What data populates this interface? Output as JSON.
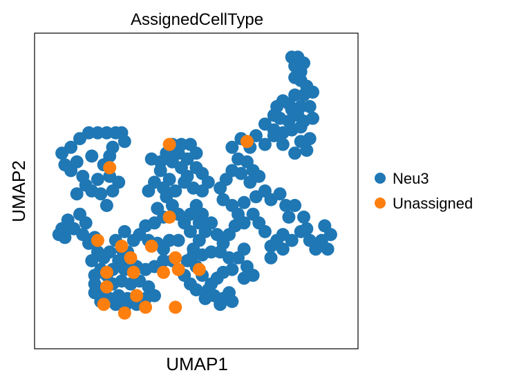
{
  "chart_data": {
    "type": "scatter",
    "title": "AssignedCellType",
    "xlabel": "UMAP1",
    "ylabel": "UMAP2",
    "xlim": [
      0,
      10
    ],
    "ylim": [
      0,
      10
    ],
    "grid": false,
    "legend_position": "right",
    "series": [
      {
        "name": "Neu3",
        "color": "#1f77b4",
        "points": [
          [
            8.2,
            9.6
          ],
          [
            8.4,
            9.6
          ],
          [
            8.6,
            9.4
          ],
          [
            8.3,
            9.3
          ],
          [
            8.5,
            9.1
          ],
          [
            8.3,
            8.9
          ],
          [
            8.5,
            8.8
          ],
          [
            8.7,
            8.6
          ],
          [
            8.9,
            8.4
          ],
          [
            8.6,
            8.3
          ],
          [
            8.3,
            8.3
          ],
          [
            8.1,
            8.0
          ],
          [
            7.9,
            8.1
          ],
          [
            7.7,
            7.9
          ],
          [
            8.2,
            7.8
          ],
          [
            8.5,
            7.9
          ],
          [
            8.8,
            7.9
          ],
          [
            8.9,
            7.5
          ],
          [
            8.6,
            7.4
          ],
          [
            8.4,
            7.6
          ],
          [
            8.1,
            7.4
          ],
          [
            7.8,
            7.5
          ],
          [
            7.6,
            7.6
          ],
          [
            7.3,
            7.3
          ],
          [
            7.6,
            7.1
          ],
          [
            7.9,
            7.0
          ],
          [
            8.2,
            7.1
          ],
          [
            8.5,
            7.2
          ],
          [
            8.8,
            6.8
          ],
          [
            8.5,
            6.7
          ],
          [
            8.7,
            6.4
          ],
          [
            8.3,
            6.3
          ],
          [
            7.9,
            6.6
          ],
          [
            7.6,
            6.9
          ],
          [
            7.3,
            6.6
          ],
          [
            7.0,
            6.9
          ],
          [
            6.8,
            6.5
          ],
          [
            6.5,
            6.8
          ],
          [
            6.2,
            6.5
          ],
          [
            6.4,
            6.1
          ],
          [
            6.7,
            6.0
          ],
          [
            6.9,
            5.7
          ],
          [
            7.1,
            5.5
          ],
          [
            6.8,
            5.3
          ],
          [
            6.5,
            5.6
          ],
          [
            6.2,
            5.7
          ],
          [
            6.0,
            5.4
          ],
          [
            5.8,
            5.1
          ],
          [
            5.9,
            4.7
          ],
          [
            6.2,
            4.5
          ],
          [
            6.4,
            4.2
          ],
          [
            6.6,
            4.6
          ],
          [
            7.0,
            4.8
          ],
          [
            7.3,
            5.0
          ],
          [
            7.5,
            4.7
          ],
          [
            7.8,
            4.9
          ],
          [
            8.0,
            4.5
          ],
          [
            8.3,
            4.5
          ],
          [
            8.1,
            4.1
          ],
          [
            8.6,
            4.1
          ],
          [
            8.7,
            3.7
          ],
          [
            9.3,
            3.8
          ],
          [
            9.5,
            3.5
          ],
          [
            9.2,
            3.3
          ],
          [
            9.4,
            3.0
          ],
          [
            9.0,
            3.0
          ],
          [
            8.8,
            3.3
          ],
          [
            8.5,
            3.6
          ],
          [
            8.2,
            3.3
          ],
          [
            7.9,
            3.5
          ],
          [
            7.7,
            3.3
          ],
          [
            7.5,
            3.1
          ],
          [
            7.9,
            3.0
          ],
          [
            7.5,
            2.7
          ],
          [
            7.3,
            3.6
          ],
          [
            7.1,
            3.9
          ],
          [
            6.9,
            4.2
          ],
          [
            6.6,
            3.9
          ],
          [
            6.3,
            3.8
          ],
          [
            6.1,
            3.5
          ],
          [
            5.9,
            3.2
          ],
          [
            5.7,
            3.5
          ],
          [
            5.5,
            3.9
          ],
          [
            5.3,
            3.6
          ],
          [
            5.1,
            3.3
          ],
          [
            4.9,
            3.0
          ],
          [
            5.2,
            2.8
          ],
          [
            5.5,
            2.9
          ],
          [
            5.8,
            2.9
          ],
          [
            6.1,
            2.7
          ],
          [
            6.4,
            2.7
          ],
          [
            6.6,
            3.0
          ],
          [
            6.7,
            2.4
          ],
          [
            6.9,
            2.1
          ],
          [
            6.6,
            2.0
          ],
          [
            6.2,
            2.3
          ],
          [
            5.9,
            2.2
          ],
          [
            5.7,
            2.0
          ],
          [
            5.5,
            1.8
          ],
          [
            5.6,
            1.4
          ],
          [
            5.9,
            1.3
          ],
          [
            6.1,
            1.5
          ],
          [
            6.2,
            1.2
          ],
          [
            5.8,
            1.1
          ],
          [
            5.4,
            1.6
          ],
          [
            5.2,
            2.1
          ],
          [
            5.0,
            2.4
          ],
          [
            4.9,
            2.8
          ],
          [
            5.3,
            1.3
          ],
          [
            5.0,
            1.6
          ],
          [
            4.8,
            1.8
          ],
          [
            4.6,
            2.1
          ],
          [
            4.8,
            4.2
          ],
          [
            5.0,
            4.5
          ],
          [
            5.2,
            4.2
          ],
          [
            5.1,
            3.9
          ],
          [
            4.8,
            3.6
          ],
          [
            4.6,
            3.9
          ],
          [
            4.4,
            4.2
          ],
          [
            4.2,
            4.5
          ],
          [
            4.0,
            4.8
          ],
          [
            4.3,
            5.0
          ],
          [
            4.6,
            5.3
          ],
          [
            4.9,
            5.1
          ],
          [
            5.2,
            5.0
          ],
          [
            5.4,
            5.3
          ],
          [
            5.2,
            5.6
          ],
          [
            5.0,
            5.8
          ],
          [
            4.7,
            5.5
          ],
          [
            4.5,
            5.8
          ],
          [
            4.2,
            6.0
          ],
          [
            4.4,
            6.3
          ],
          [
            4.7,
            6.1
          ],
          [
            5.0,
            6.3
          ],
          [
            4.8,
            6.6
          ],
          [
            4.5,
            6.6
          ],
          [
            4.2,
            6.6
          ],
          [
            4.0,
            6.3
          ],
          [
            3.8,
            6.0
          ],
          [
            3.5,
            6.1
          ],
          [
            3.8,
            5.7
          ],
          [
            4.1,
            5.4
          ],
          [
            3.9,
            5.1
          ],
          [
            3.6,
            5.3
          ],
          [
            3.4,
            5.0
          ],
          [
            3.7,
            4.4
          ],
          [
            3.9,
            4.1
          ],
          [
            3.6,
            3.9
          ],
          [
            3.3,
            3.8
          ],
          [
            3.1,
            3.5
          ],
          [
            3.4,
            3.3
          ],
          [
            3.7,
            3.2
          ],
          [
            3.9,
            3.0
          ],
          [
            4.1,
            3.3
          ],
          [
            4.4,
            3.3
          ],
          [
            4.7,
            2.6
          ],
          [
            4.2,
            2.6
          ],
          [
            3.9,
            2.6
          ],
          [
            3.6,
            2.4
          ],
          [
            3.3,
            2.3
          ],
          [
            3.0,
            2.4
          ],
          [
            2.8,
            2.6
          ],
          [
            2.6,
            2.3
          ],
          [
            2.4,
            2.6
          ],
          [
            2.2,
            2.3
          ],
          [
            2.0,
            2.1
          ],
          [
            1.8,
            2.3
          ],
          [
            1.6,
            2.1
          ],
          [
            1.6,
            1.8
          ],
          [
            1.9,
            1.6
          ],
          [
            2.2,
            1.8
          ],
          [
            2.5,
            1.9
          ],
          [
            2.8,
            1.8
          ],
          [
            3.1,
            1.9
          ],
          [
            3.4,
            1.7
          ],
          [
            3.6,
            1.4
          ],
          [
            3.3,
            1.3
          ],
          [
            3.0,
            1.4
          ],
          [
            2.7,
            1.3
          ],
          [
            2.4,
            1.4
          ],
          [
            2.1,
            1.3
          ],
          [
            1.8,
            1.2
          ],
          [
            1.6,
            1.5
          ],
          [
            2.3,
            1.1
          ],
          [
            2.6,
            1.0
          ],
          [
            3.0,
            1.1
          ],
          [
            2.5,
            3.0
          ],
          [
            2.3,
            3.3
          ],
          [
            2.6,
            3.6
          ],
          [
            2.9,
            3.3
          ],
          [
            2.7,
            2.9
          ],
          [
            2.1,
            2.9
          ],
          [
            1.9,
            2.7
          ],
          [
            1.7,
            2.9
          ],
          [
            1.5,
            2.6
          ],
          [
            1.4,
            3.2
          ],
          [
            1.6,
            3.4
          ],
          [
            1.3,
            3.9
          ],
          [
            1.1,
            4.2
          ],
          [
            1.0,
            4.9
          ],
          [
            1.3,
            5.2
          ],
          [
            1.5,
            5.0
          ],
          [
            1.2,
            5.5
          ],
          [
            1.0,
            6.0
          ],
          [
            0.8,
            5.7
          ],
          [
            0.6,
            5.9
          ],
          [
            0.5,
            6.3
          ],
          [
            0.8,
            6.5
          ],
          [
            1.1,
            6.8
          ],
          [
            1.4,
            7.0
          ],
          [
            1.7,
            7.0
          ],
          [
            2.0,
            7.0
          ],
          [
            2.3,
            7.0
          ],
          [
            2.5,
            7.0
          ],
          [
            2.6,
            6.7
          ],
          [
            2.2,
            6.5
          ],
          [
            2.1,
            6.2
          ],
          [
            1.9,
            5.9
          ],
          [
            2.1,
            5.5
          ],
          [
            2.4,
            5.3
          ],
          [
            2.2,
            5.0
          ],
          [
            1.8,
            4.9
          ],
          [
            1.7,
            5.4
          ],
          [
            1.5,
            6.2
          ],
          [
            0.7,
            4.0
          ],
          [
            0.5,
            3.7
          ],
          [
            0.4,
            3.5
          ],
          [
            0.6,
            3.4
          ],
          [
            0.9,
            3.7
          ],
          [
            1.2,
            3.5
          ],
          [
            2.0,
            4.5
          ]
        ]
      },
      {
        "name": "Unassigned",
        "color": "#ff7f0e",
        "points": [
          [
            6.7,
            6.7
          ],
          [
            4.1,
            6.6
          ],
          [
            2.1,
            5.8
          ],
          [
            4.1,
            4.1
          ],
          [
            1.7,
            3.3
          ],
          [
            2.5,
            3.1
          ],
          [
            3.5,
            3.1
          ],
          [
            2.8,
            2.7
          ],
          [
            4.3,
            2.7
          ],
          [
            4.4,
            2.3
          ],
          [
            3.9,
            2.2
          ],
          [
            5.1,
            2.3
          ],
          [
            2.0,
            2.2
          ],
          [
            2.0,
            1.7
          ],
          [
            2.9,
            2.2
          ],
          [
            3.0,
            1.4
          ],
          [
            1.9,
            1.1
          ],
          [
            2.6,
            0.8
          ],
          [
            4.3,
            1.0
          ],
          [
            3.3,
            1.0
          ]
        ]
      }
    ]
  }
}
